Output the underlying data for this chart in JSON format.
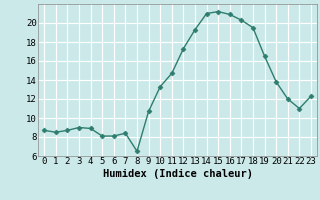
{
  "x": [
    0,
    1,
    2,
    3,
    4,
    5,
    6,
    7,
    8,
    9,
    10,
    11,
    12,
    13,
    14,
    15,
    16,
    17,
    18,
    19,
    20,
    21,
    22,
    23
  ],
  "y": [
    8.7,
    8.5,
    8.7,
    9.0,
    8.9,
    8.1,
    8.1,
    8.4,
    6.5,
    10.7,
    13.3,
    14.7,
    17.3,
    19.3,
    21.0,
    21.2,
    20.9,
    20.3,
    19.5,
    16.5,
    13.8,
    12.0,
    11.0,
    12.3
  ],
  "line_color": "#2e7d6e",
  "marker": "D",
  "marker_size": 2.5,
  "bg_color": "#cce9e9",
  "grid_color": "#ffffff",
  "xlabel": "Humidex (Indice chaleur)",
  "xlim": [
    -0.5,
    23.5
  ],
  "ylim": [
    6,
    22
  ],
  "yticks": [
    6,
    8,
    10,
    12,
    14,
    16,
    18,
    20
  ],
  "xticks": [
    0,
    1,
    2,
    3,
    4,
    5,
    6,
    7,
    8,
    9,
    10,
    11,
    12,
    13,
    14,
    15,
    16,
    17,
    18,
    19,
    20,
    21,
    22,
    23
  ],
  "xlabel_fontsize": 7.5,
  "tick_fontsize": 6.5
}
